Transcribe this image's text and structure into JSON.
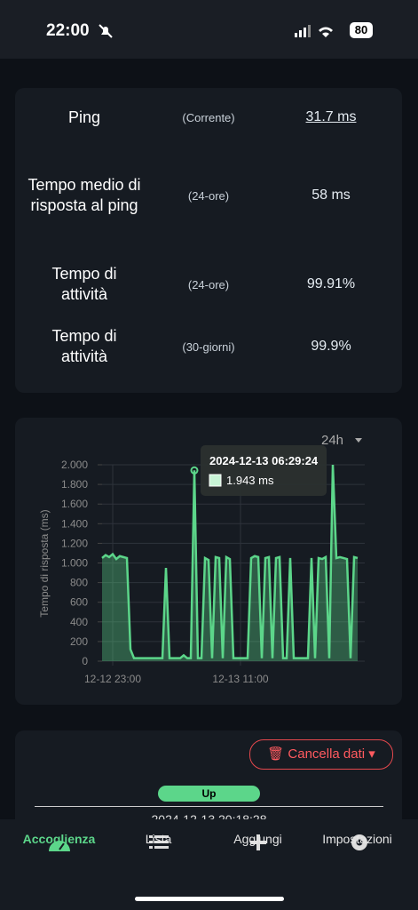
{
  "status_bar": {
    "time": "22:00",
    "battery": "80"
  },
  "stats": {
    "rows": [
      [
        "Ping",
        "(Corrente)",
        "31.7 ms"
      ],
      [
        "Tempo medio di risposta al ping",
        "(24-ore)",
        "58 ms"
      ],
      [
        "Tempo di attività",
        "(24-ore)",
        "99.91%"
      ],
      [
        "Tempo di attività",
        "(30-giorni)",
        "99.9%"
      ]
    ]
  },
  "chart_data": {
    "type": "line",
    "range_selector": "24h",
    "y_label": "Tempo di risposta (ms)",
    "color": "#5cd68a",
    "grid": true,
    "ylim": [
      0,
      2000
    ],
    "yticks": [
      0,
      200,
      400,
      600,
      800,
      {
        "value": 1000,
        "label": "1.000"
      },
      {
        "value": 1200,
        "label": "1.200"
      },
      {
        "value": 1400,
        "label": "1.400"
      },
      {
        "value": 1600,
        "label": "1.600"
      },
      {
        "value": 1800,
        "label": "1.800"
      },
      {
        "value": 2000,
        "label": "2.000"
      }
    ],
    "categories": [
      null,
      null,
      null,
      "12-12 23:00",
      null,
      null,
      null,
      null,
      null,
      null,
      null,
      null,
      null,
      null,
      null,
      null,
      null,
      null,
      null,
      null,
      null,
      null,
      null,
      null,
      null,
      null,
      null,
      null,
      null,
      null,
      null,
      null,
      null,
      null,
      null,
      null,
      null,
      null,
      null,
      "12-13 11:00",
      null,
      null,
      null,
      null,
      null,
      null,
      null,
      null,
      null,
      null,
      null,
      null,
      null,
      null,
      null,
      null,
      null,
      null,
      null,
      null,
      null,
      null,
      null,
      null,
      null,
      null,
      null,
      null,
      null,
      null,
      null,
      null,
      null
    ],
    "values": [
      1050,
      1080,
      1060,
      1090,
      1040,
      1070,
      1060,
      1050,
      120,
      30,
      30,
      30,
      30,
      30,
      30,
      30,
      30,
      30,
      950,
      30,
      30,
      30,
      30,
      60,
      30,
      30,
      1943,
      30,
      30,
      1050,
      1030,
      30,
      1060,
      1050,
      30,
      1060,
      1040,
      30,
      30,
      30,
      30,
      30,
      1050,
      1070,
      1060,
      30,
      1050,
      1060,
      30,
      1050,
      1060,
      30,
      30,
      1050,
      30,
      30,
      30,
      30,
      30,
      1050,
      30,
      1050,
      1040,
      1060,
      30,
      2000,
      1050,
      1060,
      1050,
      1040,
      30,
      1060,
      1050
    ],
    "tooltip": {
      "index": 26,
      "title": "2024-12-13 06:29:24",
      "label": "1.943 ms"
    }
  },
  "log": {
    "button": "Cancella dati",
    "status": "Up",
    "time": "2024-12-13 20:18:28"
  },
  "tabs": [
    "Accoglienza",
    "Lista",
    "Aggiungi",
    "Impostazioni"
  ]
}
